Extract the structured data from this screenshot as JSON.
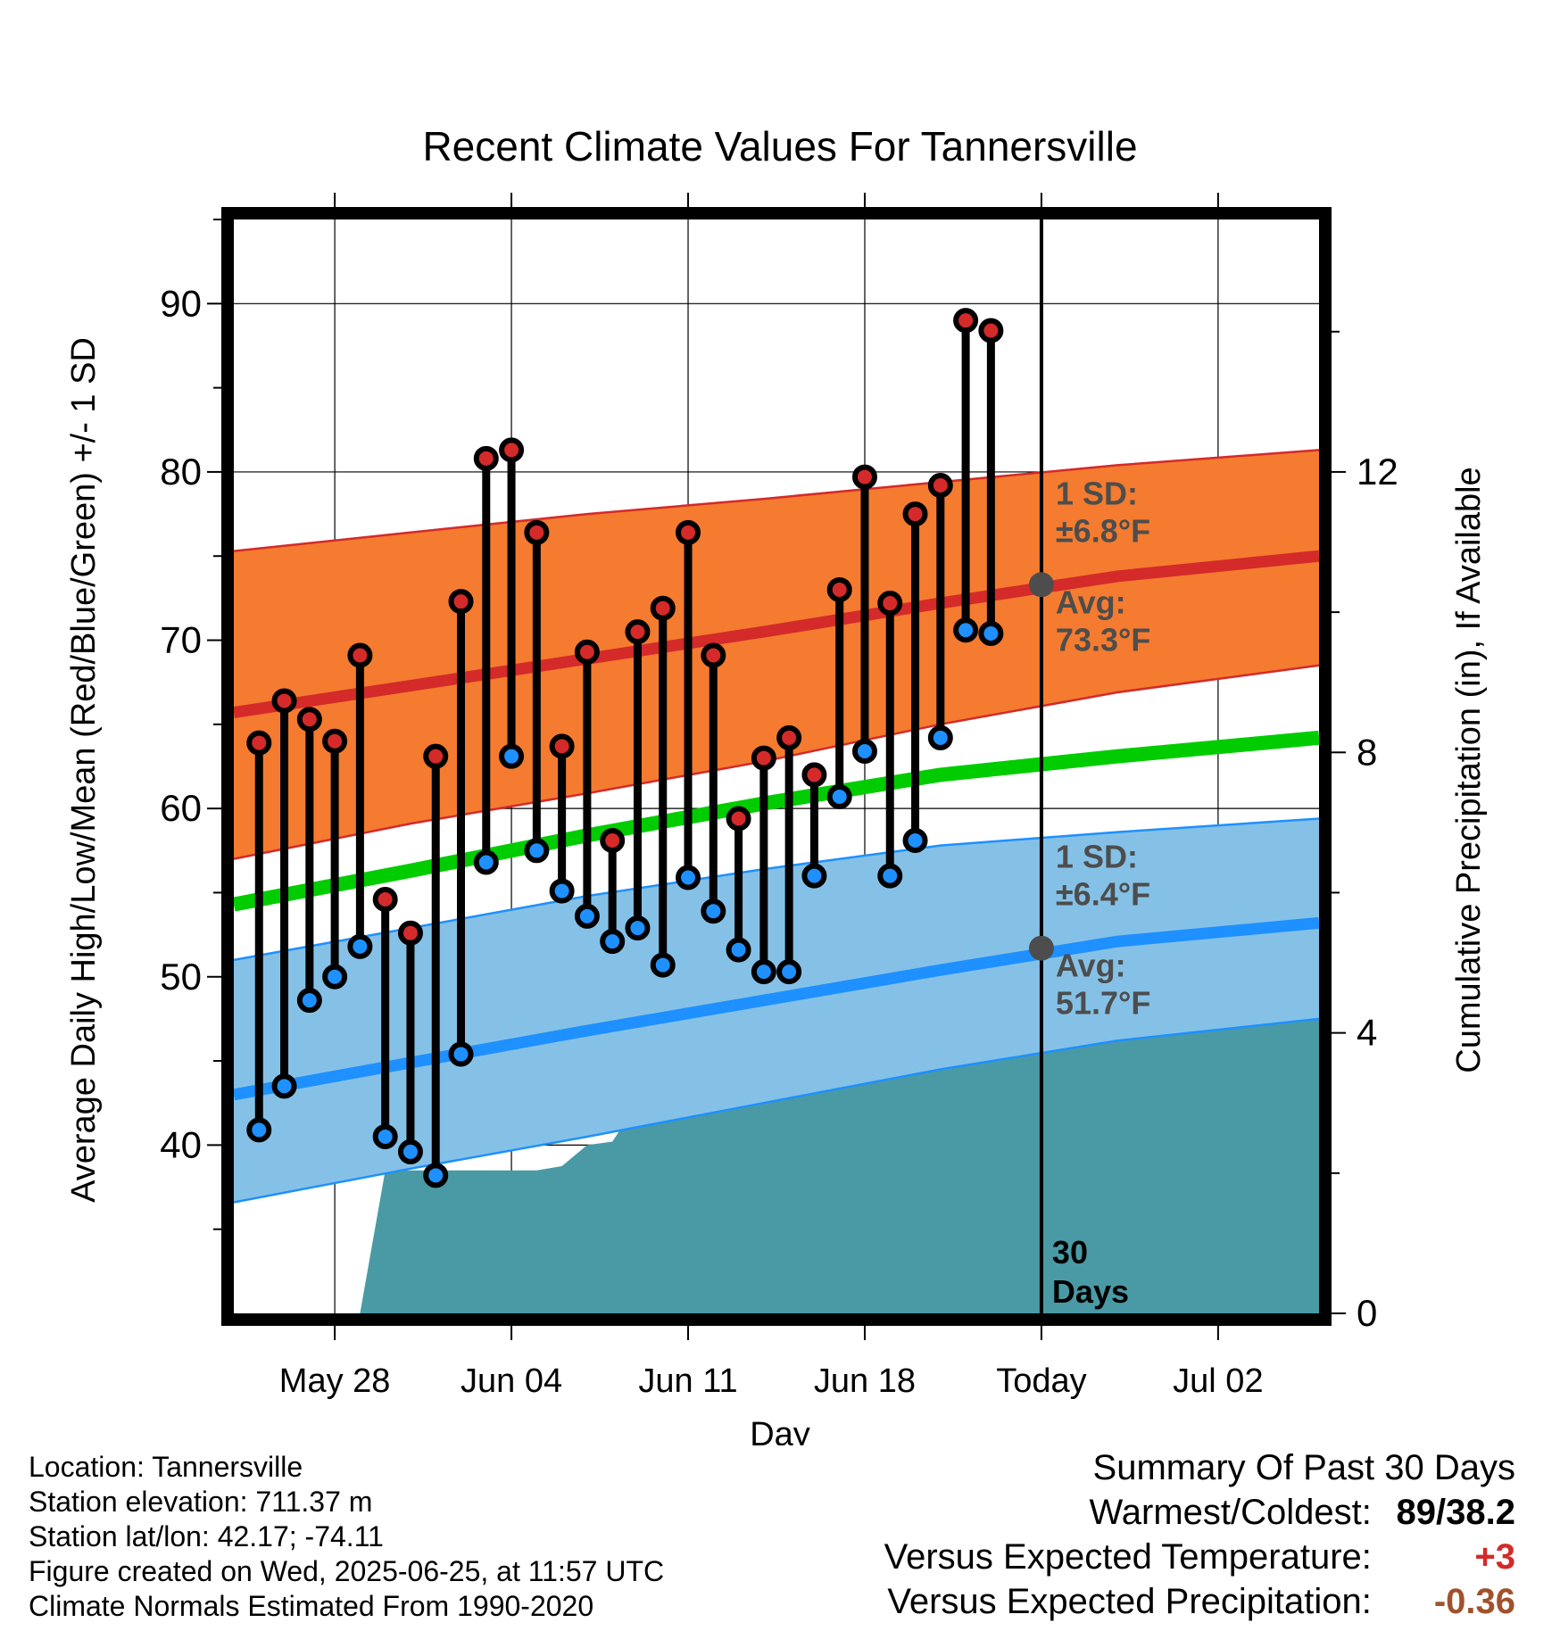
{
  "chart_data": {
    "type": "line",
    "title": "Recent Climate Values For Tannersville",
    "xlabel": "Day",
    "ylabel": "Average Daily High/Low/Mean (Red/Blue/Green) +/- 1 SD",
    "y2label": "Cumulative Precipitation (in), If Available",
    "ylim": [
      30,
      95
    ],
    "y2lim": [
      0,
      15.6
    ],
    "yticks": [
      40,
      50,
      60,
      70,
      80,
      90
    ],
    "y2ticks": [
      0,
      4,
      8,
      12
    ],
    "xrange": [
      "2025-05-24",
      "2025-07-06"
    ],
    "xticks": [
      {
        "date": "2025-05-28",
        "label": "May 28"
      },
      {
        "date": "2025-06-04",
        "label": "Jun 04"
      },
      {
        "date": "2025-06-11",
        "label": "Jun 11"
      },
      {
        "date": "2025-06-18",
        "label": "Jun 18"
      },
      {
        "date": "2025-06-25",
        "label": "Today"
      },
      {
        "date": "2025-07-02",
        "label": "Jul 02"
      }
    ],
    "grid": true,
    "today": "2025-06-25",
    "today_label": "30 Days",
    "colors": {
      "high": "#d42a2a",
      "high_band": "#f47b2f",
      "low": "#1e90ff",
      "low_band": "#85c1e7",
      "mean": "#00cc00",
      "precip": "#4a9aa5",
      "avg_marker": "#4d4d4d"
    },
    "daily": [
      {
        "date": "2025-05-25",
        "high": 63.9,
        "low": 40.9
      },
      {
        "date": "2025-05-26",
        "high": 66.4,
        "low": 43.5
      },
      {
        "date": "2025-05-27",
        "high": 65.3,
        "low": 48.6
      },
      {
        "date": "2025-05-28",
        "high": 64.0,
        "low": 50.0
      },
      {
        "date": "2025-05-29",
        "high": 69.1,
        "low": 51.8
      },
      {
        "date": "2025-05-30",
        "high": 54.6,
        "low": 40.5
      },
      {
        "date": "2025-05-31",
        "high": 52.6,
        "low": 39.6
      },
      {
        "date": "2025-06-01",
        "high": 63.1,
        "low": 38.2
      },
      {
        "date": "2025-06-02",
        "high": 72.3,
        "low": 45.4
      },
      {
        "date": "2025-06-03",
        "high": 80.8,
        "low": 56.8
      },
      {
        "date": "2025-06-04",
        "high": 81.3,
        "low": 63.1
      },
      {
        "date": "2025-06-05",
        "high": 76.4,
        "low": 57.5
      },
      {
        "date": "2025-06-06",
        "high": 63.7,
        "low": 55.1
      },
      {
        "date": "2025-06-07",
        "high": 69.3,
        "low": 53.6
      },
      {
        "date": "2025-06-08",
        "high": 58.1,
        "low": 52.1
      },
      {
        "date": "2025-06-09",
        "high": 70.5,
        "low": 52.9
      },
      {
        "date": "2025-06-10",
        "high": 71.9,
        "low": 50.7
      },
      {
        "date": "2025-06-11",
        "high": 76.4,
        "low": 55.9
      },
      {
        "date": "2025-06-12",
        "high": 69.1,
        "low": 53.9
      },
      {
        "date": "2025-06-13",
        "high": 59.4,
        "low": 51.6
      },
      {
        "date": "2025-06-14",
        "high": 63.0,
        "low": 50.3
      },
      {
        "date": "2025-06-15",
        "high": 64.2,
        "low": 50.3
      },
      {
        "date": "2025-06-16",
        "high": 62.0,
        "low": 56.0
      },
      {
        "date": "2025-06-17",
        "high": 73.0,
        "low": 60.7
      },
      {
        "date": "2025-06-18",
        "high": 79.7,
        "low": 63.4
      },
      {
        "date": "2025-06-19",
        "high": 72.2,
        "low": 56.0
      },
      {
        "date": "2025-06-20",
        "high": 77.5,
        "low": 58.1
      },
      {
        "date": "2025-06-21",
        "high": 79.2,
        "low": 64.2
      },
      {
        "date": "2025-06-22",
        "high": 89.0,
        "low": 70.6
      },
      {
        "date": "2025-06-23",
        "high": 88.4,
        "low": 70.4
      }
    ],
    "normals": {
      "dates": [
        "2025-05-24",
        "2025-05-31",
        "2025-06-07",
        "2025-06-14",
        "2025-06-21",
        "2025-06-28",
        "2025-07-06"
      ],
      "high_mean": [
        65.7,
        67.3,
        68.9,
        70.5,
        72.2,
        73.8,
        75.0
      ],
      "high_upper": [
        75.3,
        76.4,
        77.5,
        78.4,
        79.4,
        80.4,
        81.3
      ],
      "high_lower": [
        57.0,
        59.1,
        60.9,
        62.8,
        65.0,
        66.9,
        68.5
      ],
      "mean": [
        54.3,
        56.3,
        58.4,
        60.3,
        62.0,
        63.1,
        64.2
      ],
      "low_mean": [
        43.0,
        44.9,
        46.8,
        48.6,
        50.4,
        52.1,
        53.2
      ],
      "low_upper": [
        51.0,
        52.9,
        54.8,
        56.4,
        57.8,
        58.6,
        59.4
      ],
      "low_lower": [
        36.6,
        38.6,
        40.5,
        42.5,
        44.5,
        46.2,
        47.5
      ]
    },
    "precip_cumulative": [
      {
        "date": "2025-05-29",
        "value": 0
      },
      {
        "date": "2025-05-30",
        "value": 2.04
      },
      {
        "date": "2025-06-05",
        "value": 2.04
      },
      {
        "date": "2025-06-06",
        "value": 2.1
      },
      {
        "date": "2025-06-07",
        "value": 2.4
      },
      {
        "date": "2025-06-08",
        "value": 2.45
      },
      {
        "date": "2025-06-09",
        "value": 3.0
      },
      {
        "date": "2025-06-10",
        "value": 3.07
      },
      {
        "date": "2025-06-12",
        "value": 3.07
      },
      {
        "date": "2025-06-13",
        "value": 3.07
      },
      {
        "date": "2025-06-14",
        "value": 3.3
      },
      {
        "date": "2025-06-15",
        "value": 3.3
      },
      {
        "date": "2025-06-16",
        "value": 3.45
      },
      {
        "date": "2025-06-17",
        "value": 3.55
      },
      {
        "date": "2025-06-18",
        "value": 4.6
      },
      {
        "date": "2025-06-21",
        "value": 4.6
      },
      {
        "date": "2025-06-22",
        "value": 4.65
      },
      {
        "date": "2025-07-06",
        "value": 4.65
      }
    ],
    "annotations": {
      "high_sd_label": "1 SD:",
      "high_sd_value": "±6.8°F",
      "high_avg_label": "Avg:",
      "high_avg_value": "73.3°F",
      "high_avg": 73.3,
      "low_sd_label": "1 SD:",
      "low_sd_value": "±6.4°F",
      "low_avg_label": "Avg:",
      "low_avg_value": "51.7°F",
      "low_avg": 51.7,
      "today_label_line1": "30",
      "today_label_line2": "Days"
    }
  },
  "info": {
    "location": "Location: Tannersville",
    "elevation": "Station elevation: 711.37 m",
    "latlon": "Station lat/lon: 42.17; -74.11",
    "created": "Figure created on Wed, 2025-06-25, at 11:57 UTC",
    "normals": "Climate Normals Estimated From 1990-2020"
  },
  "summary": {
    "title": "Summary Of Past 30 Days",
    "warmest_label": "Warmest/Coldest:",
    "warmest_value": "89/38.2",
    "temp_label": "Versus Expected Temperature:",
    "temp_value": "+3",
    "temp_color": "#d42a2a",
    "precip_label": "Versus Expected Precipitation:",
    "precip_value": "-0.36",
    "precip_color": "#a0522d"
  }
}
